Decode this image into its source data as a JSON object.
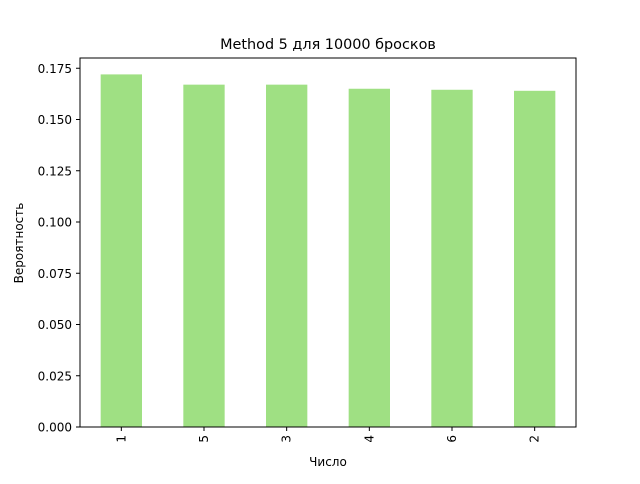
{
  "chart_data": {
    "type": "bar",
    "title": "Method 5 для 10000 бросков",
    "xlabel": "Число",
    "ylabel": "Вероятность",
    "categories": [
      "1",
      "5",
      "3",
      "4",
      "6",
      "2"
    ],
    "values": [
      0.172,
      0.167,
      0.167,
      0.165,
      0.1645,
      0.164
    ],
    "ylim": [
      0,
      0.18
    ],
    "yticks": [
      0.0,
      0.025,
      0.05,
      0.075,
      0.1,
      0.125,
      0.15,
      0.175
    ],
    "ytick_labels": [
      "0.000",
      "0.025",
      "0.050",
      "0.075",
      "0.100",
      "0.125",
      "0.150",
      "0.175"
    ],
    "bar_color": "#9fe083",
    "grid": false,
    "legend": "none"
  }
}
